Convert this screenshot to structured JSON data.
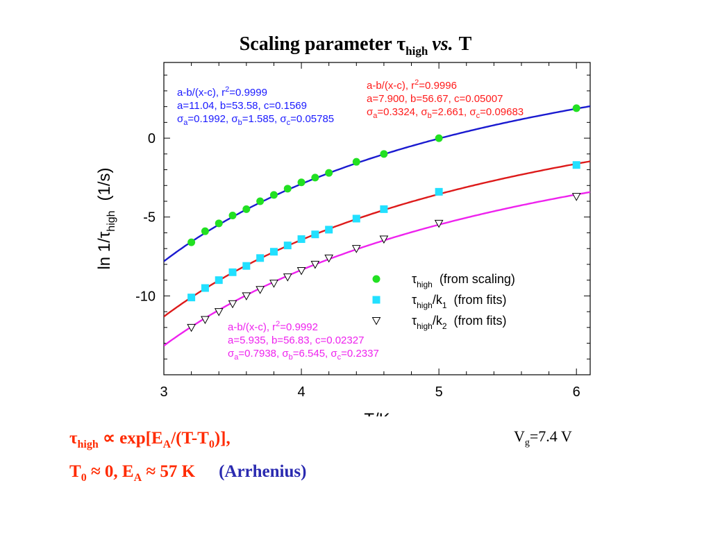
{
  "chart_data": {
    "type": "scatter",
    "title": {
      "prefix": "Scaling parameter ",
      "tau": "τ",
      "sub": "high",
      "vs": "vs.",
      "suffix": "T"
    },
    "xlabel": "T/K",
    "ylabel": {
      "prefix": "ln 1/",
      "tau": "τ",
      "sub": "high",
      "units": "(1/s)"
    },
    "xlim": [
      3.0,
      6.1
    ],
    "ylim": [
      -15,
      4.8
    ],
    "x_ticks": [
      3,
      4,
      5,
      6
    ],
    "y_ticks": [
      0,
      -5,
      -10
    ],
    "x_tick_labels": [
      "3",
      "4",
      "5",
      "6"
    ],
    "y_tick_labels": [
      "0",
      "-5",
      "-10"
    ],
    "x_minor_step": 0.2,
    "y_minor_step": 1,
    "grid": false,
    "legend_position": "right",
    "series": [
      {
        "legend": {
          "tau": "τ",
          "sub": "high",
          "extra": "",
          "extra_sub": "",
          "note": "(from scaling)"
        },
        "marker": "circle",
        "color": "#22e022",
        "edge_color": "#22e022",
        "x": [
          3.2,
          3.3,
          3.4,
          3.5,
          3.6,
          3.7,
          3.8,
          3.9,
          4.0,
          4.1,
          4.2,
          4.4,
          4.6,
          5.0,
          6.0
        ],
        "y": [
          -6.6,
          -5.9,
          -5.4,
          -4.9,
          -4.5,
          -4.0,
          -3.6,
          -3.2,
          -2.8,
          -2.5,
          -2.2,
          -1.5,
          -1.0,
          0.0,
          1.9
        ],
        "fit": {
          "a": 11.04,
          "b": 53.58,
          "c": 0.1569,
          "color": "#1a1aff",
          "line_color": "#1a1ad0",
          "lines": [
            {
              "text": "a-b/(x-c), r",
              "sup": "2",
              "tail": "=0.9999"
            },
            {
              "text": "a=11.04, b=53.58, c=0.1569"
            },
            {
              "sigma": [
                [
                  "a",
                  "=0.1992, "
                ],
                [
                  "b",
                  "=1.585, "
                ],
                [
                  "c",
                  "=0.05785"
                ]
              ]
            }
          ]
        }
      },
      {
        "legend": {
          "tau": "τ",
          "sub": "high",
          "extra": "/k",
          "extra_sub": "1",
          "note": "(from fits)"
        },
        "marker": "square",
        "color": "#22e0ff",
        "edge_color": "#22e0ff",
        "x": [
          3.2,
          3.3,
          3.4,
          3.5,
          3.6,
          3.7,
          3.8,
          3.9,
          4.0,
          4.1,
          4.2,
          4.4,
          4.6,
          5.0,
          6.0
        ],
        "y": [
          -10.1,
          -9.5,
          -9.0,
          -8.5,
          -8.1,
          -7.6,
          -7.2,
          -6.8,
          -6.4,
          -6.1,
          -5.8,
          -5.1,
          -4.5,
          -3.4,
          -1.7
        ],
        "fit": {
          "a": 7.9,
          "b": 56.67,
          "c": 0.05007,
          "color": "#ff1a1a",
          "line_color": "#dd1a1a",
          "lines": [
            {
              "text": "a-b/(x-c), r",
              "sup": "2",
              "tail": "=0.9996"
            },
            {
              "text": "a=7.900, b=56.67, c=0.05007"
            },
            {
              "sigma": [
                [
                  "a",
                  "=0.3324, "
                ],
                [
                  "b",
                  "=2.661, "
                ],
                [
                  "c",
                  "=0.09683"
                ]
              ]
            }
          ]
        }
      },
      {
        "legend": {
          "tau": "τ",
          "sub": "high",
          "extra": "/k",
          "extra_sub": "2",
          "note": "(from fits)"
        },
        "marker": "triangle-down",
        "color": "#ffffff",
        "edge_color": "#000000",
        "x": [
          3.2,
          3.3,
          3.4,
          3.5,
          3.6,
          3.7,
          3.8,
          3.9,
          4.0,
          4.1,
          4.2,
          4.4,
          4.6,
          5.0,
          6.0
        ],
        "y": [
          -12.0,
          -11.5,
          -11.0,
          -10.5,
          -10.0,
          -9.6,
          -9.2,
          -8.8,
          -8.4,
          -8.0,
          -7.6,
          -7.0,
          -6.4,
          -5.4,
          -3.7
        ],
        "fit": {
          "a": 5.935,
          "b": 56.83,
          "c": 0.02327,
          "color": "#ee22ee",
          "line_color": "#ee22ee",
          "lines": [
            {
              "text": "a-b/(x-c), r",
              "sup": "2",
              "tail": "=0.9992"
            },
            {
              "text": "a=5.935, b=56.83, c=0.02327"
            },
            {
              "sigma": [
                [
                  "a",
                  "=0.7938, "
                ],
                [
                  "b",
                  "=6.545, "
                ],
                [
                  "c",
                  "=0.2337"
                ]
              ]
            }
          ]
        }
      }
    ]
  },
  "footer": {
    "line1": {
      "tau": "τ",
      "tau_sub": "high",
      "prop": " ∝ exp[E",
      "ea_sub": "A",
      "mid": "/(T-T",
      "t0_sub": "0",
      "end": ")],",
      "color": "#ff2a00"
    },
    "line2": {
      "t": "T",
      "t_sub": "0",
      "rest": " ≈ 0, E",
      "e_sub": "A",
      "tail": " ≈ 57 K",
      "color": "#ff2a00"
    },
    "arrhenius": {
      "text": "(Arrhenius)",
      "color": "#2a2ab0"
    },
    "vg": {
      "v": "V",
      "sub": "g",
      "val": "=7.4 V"
    }
  }
}
